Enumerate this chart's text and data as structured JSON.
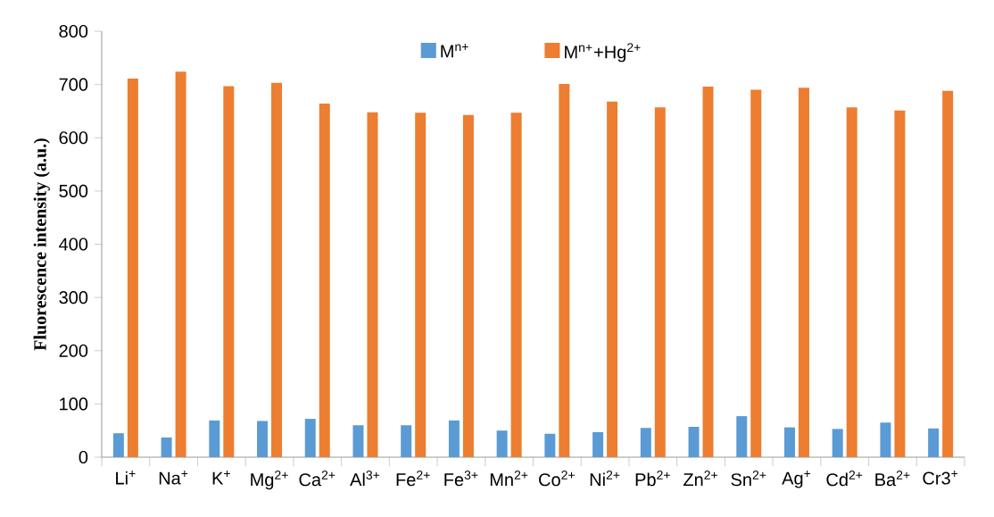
{
  "chart_data": {
    "type": "bar",
    "ylabel": "Fluorescence intensity (a.u.)",
    "categories": [
      "Li$^{+}$",
      "Na$^{+}$",
      "K$^{+}$",
      "Mg$^{2+}$",
      "Ca$^{2+}$",
      "Al$^{3+}$",
      "Fe$^{2+}$",
      "Fe$^{3+}$",
      "Mn$^{2+}$",
      "Co$^{2+}$",
      "Ni$^{2+}$",
      "Pb$^{2+}$",
      "Zn$^{2+}$",
      "Sn$^{2+}$",
      "Ag$^{+}$",
      "Cd$^{2+}$",
      "Ba$^{2+}$",
      "Cr3$^{+}$"
    ],
    "series": [
      {
        "name": "M$^{n+}$",
        "color": "#5b9bd5",
        "values": [
          45,
          37,
          69,
          68,
          72,
          60,
          60,
          69,
          50,
          44,
          47,
          55,
          57,
          77,
          56,
          53,
          65,
          54
        ]
      },
      {
        "name": "M$^{n+}$+Hg$^{2+}$",
        "color": "#ed7d31",
        "values": [
          711,
          724,
          697,
          703,
          664,
          648,
          647,
          643,
          647,
          701,
          668,
          657,
          696,
          690,
          694,
          657,
          651,
          688
        ]
      }
    ],
    "ylim": [
      0,
      800
    ],
    "yticks": [
      0,
      100,
      200,
      300,
      400,
      500,
      600,
      700,
      800
    ],
    "legend": "top",
    "grid": false
  }
}
